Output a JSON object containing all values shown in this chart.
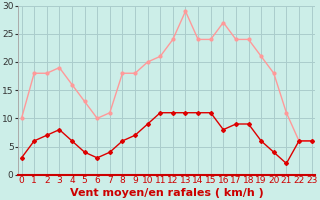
{
  "hours": [
    0,
    1,
    2,
    3,
    4,
    5,
    6,
    7,
    8,
    9,
    10,
    11,
    12,
    13,
    14,
    15,
    16,
    17,
    18,
    19,
    20,
    21,
    22,
    23
  ],
  "wind_avg": [
    3,
    6,
    7,
    8,
    6,
    4,
    3,
    4,
    6,
    7,
    9,
    11,
    11,
    11,
    11,
    11,
    8,
    9,
    9,
    6,
    4,
    2,
    6,
    6
  ],
  "wind_gust": [
    10,
    18,
    18,
    19,
    16,
    13,
    10,
    11,
    18,
    18,
    20,
    21,
    24,
    29,
    24,
    24,
    27,
    24,
    24,
    21,
    18,
    11,
    6,
    6
  ],
  "avg_color": "#dd0000",
  "gust_color": "#ff9999",
  "bg_color": "#cceee8",
  "grid_color": "#aacccc",
  "xlabel": "Vent moyen/en rafales ( km/h )",
  "xlabel_color": "#cc0000",
  "ylim": [
    0,
    30
  ],
  "yticks": [
    0,
    5,
    10,
    15,
    20,
    25,
    30
  ],
  "tick_fontsize": 6.5,
  "xlabel_fontsize": 8.0
}
